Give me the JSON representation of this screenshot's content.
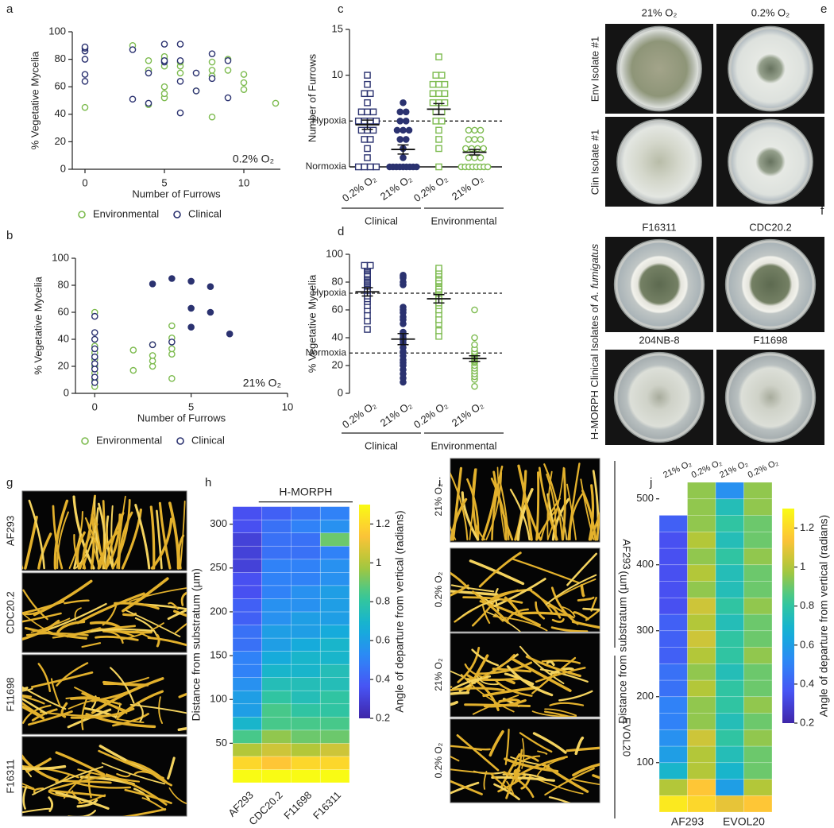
{
  "chart_data": [
    {
      "type": "scatter",
      "label": "a",
      "xlabel": "Number of Furrows",
      "ylabel": "% Vegetative Mycelia",
      "annotation": "0.2% O₂",
      "xlim": [
        -0.8,
        12.3
      ],
      "ylim": [
        0,
        100
      ],
      "xticks": [
        0,
        5,
        10
      ],
      "yticks": [
        0,
        20,
        40,
        60,
        80,
        100
      ],
      "series": [
        {
          "name": "Environmental",
          "color": "#7dbb4f",
          "x": [
            0,
            3,
            4,
            4,
            4,
            5,
            5,
            5,
            5,
            5,
            5,
            6,
            6,
            6,
            7,
            8,
            8,
            8,
            8,
            9,
            9,
            10,
            10,
            10,
            12
          ],
          "values": [
            45,
            90,
            47,
            79,
            72,
            52,
            55,
            60,
            75,
            80,
            82,
            70,
            75,
            78,
            57,
            38,
            68,
            72,
            78,
            72,
            80,
            58,
            63,
            69,
            48
          ]
        },
        {
          "name": "Clinical",
          "color": "#2b3270",
          "x": [
            0,
            0,
            0,
            0,
            0,
            0,
            3,
            3,
            4,
            4,
            5,
            5,
            5,
            6,
            6,
            6,
            6,
            7,
            7,
            8,
            8,
            9,
            9
          ],
          "values": [
            64,
            69,
            80,
            86,
            88,
            89,
            51,
            87,
            48,
            70,
            78,
            79,
            91,
            41,
            64,
            79,
            91,
            57,
            70,
            66,
            84,
            52,
            79
          ]
        }
      ]
    },
    {
      "type": "scatter",
      "label": "b",
      "xlabel": "Number of Furrows",
      "ylabel": "% Vegetative Mycelia",
      "annotation": "21% O₂",
      "xlim": [
        -1,
        10
      ],
      "ylim": [
        0,
        100
      ],
      "xticks": [
        0,
        5,
        10
      ],
      "yticks": [
        0,
        20,
        40,
        60,
        80,
        100
      ],
      "series": [
        {
          "name": "Environmental",
          "color": "#7dbb4f",
          "x": [
            0,
            0,
            0,
            0,
            0,
            0,
            0,
            0,
            2,
            2,
            3,
            3,
            3,
            3,
            4,
            4,
            4,
            4,
            4
          ],
          "values": [
            5,
            10,
            15,
            20,
            25,
            30,
            35,
            60,
            17,
            32,
            20,
            24,
            28,
            36,
            11,
            29,
            33,
            41,
            50
          ]
        },
        {
          "name": "Clinical",
          "color": "#2b3270",
          "x": [
            0,
            0,
            0,
            0,
            0,
            0,
            0,
            0,
            0,
            3,
            4,
            3,
            4,
            5,
            5,
            5,
            6,
            6,
            7
          ],
          "values": [
            8,
            12,
            18,
            22,
            27,
            33,
            40,
            45,
            57,
            36,
            38,
            81,
            85,
            49,
            63,
            83,
            60,
            79,
            44
          ],
          "filled": [
            false,
            false,
            false,
            false,
            false,
            false,
            false,
            false,
            false,
            false,
            false,
            true,
            true,
            true,
            true,
            true,
            true,
            true,
            true
          ]
        }
      ]
    },
    {
      "type": "dotplot",
      "label": "c",
      "ylabel": "Number of Furrows",
      "ylim": [
        0,
        15
      ],
      "yticks": [
        10,
        15
      ],
      "reference_lines": [
        {
          "value": 5,
          "label": "Hypoxia",
          "style": "dashed"
        },
        {
          "value": 0,
          "label": "Normoxia",
          "style": "solid"
        }
      ],
      "categories": [
        "0.2% O₂",
        "21% O₂",
        "0.2% O₂",
        "21% O₂"
      ],
      "groups": [
        "Clinical",
        "Environmental"
      ],
      "colors": [
        "#2b3270",
        "#2b3270",
        "#7dbb4f",
        "#7dbb4f"
      ],
      "markers": [
        "square-open",
        "circle-filled",
        "square-open",
        "circle-open"
      ],
      "points": [
        [
          0,
          0,
          0,
          0,
          1,
          2,
          3,
          3,
          4,
          4,
          4,
          5,
          5,
          5,
          5,
          6,
          6,
          6,
          7,
          8,
          8,
          9,
          10
        ],
        [
          0,
          0,
          0,
          0,
          0,
          0,
          0,
          0,
          0,
          1,
          2,
          3,
          3,
          4,
          4,
          4,
          5,
          5,
          6,
          6,
          7
        ],
        [
          0,
          2,
          3,
          4,
          5,
          5,
          6,
          6,
          7,
          7,
          7,
          8,
          8,
          8,
          9,
          9,
          9,
          10,
          10,
          12
        ],
        [
          0,
          0,
          0,
          0,
          0,
          0,
          0,
          0,
          1,
          1,
          1,
          2,
          2,
          2,
          2,
          3,
          3,
          3,
          4,
          4,
          4
        ]
      ],
      "means": [
        4.6,
        1.9,
        6.3,
        1.6
      ],
      "sems": [
        0.5,
        0.5,
        0.6,
        0.3
      ]
    },
    {
      "type": "dotplot",
      "label": "d",
      "ylabel": "% Vegetative Mycelia",
      "ylim": [
        0,
        100
      ],
      "yticks": [
        0,
        20,
        40,
        60,
        80,
        100
      ],
      "reference_lines": [
        {
          "value": 72,
          "label": "Hypoxia",
          "style": "dashed"
        },
        {
          "value": 29,
          "label": "Normoxia",
          "style": "dashed"
        }
      ],
      "categories": [
        "0.2% O₂",
        "21% O₂",
        "0.2% O₂",
        "21% O₂"
      ],
      "groups": [
        "Clinical",
        "Environmental"
      ],
      "colors": [
        "#2b3270",
        "#2b3270",
        "#7dbb4f",
        "#7dbb4f"
      ],
      "markers": [
        "square-open",
        "circle-filled",
        "square-open",
        "circle-open"
      ],
      "points": [
        [
          46,
          52,
          56,
          60,
          63,
          66,
          68,
          70,
          72,
          74,
          75,
          77,
          78,
          79,
          80,
          81,
          82,
          83,
          84,
          85,
          86,
          88,
          89,
          90,
          91,
          92,
          92
        ],
        [
          8,
          11,
          14,
          17,
          20,
          22,
          24,
          27,
          30,
          33,
          36,
          38,
          40,
          42,
          44,
          50,
          53,
          55,
          58,
          60,
          62,
          78,
          80,
          83,
          84,
          85
        ],
        [
          41,
          45,
          50,
          53,
          57,
          60,
          63,
          65,
          67,
          70,
          72,
          74,
          75,
          77,
          79,
          80,
          81,
          83,
          85,
          86,
          88,
          90
        ],
        [
          5,
          10,
          12,
          14,
          16,
          18,
          20,
          22,
          23,
          24,
          25,
          26,
          27,
          28,
          29,
          30,
          32,
          35,
          40,
          60
        ]
      ],
      "means": [
        73,
        39,
        68,
        25
      ],
      "sems": [
        3,
        4,
        3,
        2
      ]
    },
    {
      "type": "heatmap",
      "label": "h",
      "ylabel": "Distance from substratum (µm)",
      "columns": [
        "AF293",
        "CDC20.2",
        "F11698",
        "F16311"
      ],
      "column_group": "H-MORPH",
      "y_edges": [
        5,
        20,
        35,
        50,
        65,
        80,
        95,
        110,
        125,
        140,
        155,
        170,
        185,
        200,
        215,
        230,
        245,
        260,
        275,
        290,
        305,
        320
      ],
      "ylim": [
        5,
        320
      ],
      "yticks": [
        50,
        100,
        150,
        200,
        250,
        300
      ],
      "colormap": "parula",
      "values": [
        [
          1.3,
          1.2,
          1.0,
          0.85,
          0.7,
          0.6,
          0.6,
          0.55,
          0.5,
          0.5,
          0.45,
          0.45,
          0.4,
          0.4,
          0.35,
          0.35,
          0.3,
          0.3,
          0.3,
          0.35,
          0.35
        ],
        [
          1.3,
          1.15,
          1.05,
          0.95,
          0.85,
          0.85,
          0.8,
          0.75,
          0.7,
          0.65,
          0.6,
          0.6,
          0.55,
          0.55,
          0.5,
          0.5,
          0.5,
          0.45,
          0.45,
          0.45,
          0.4
        ],
        [
          1.3,
          1.2,
          1.0,
          0.9,
          0.85,
          0.8,
          0.75,
          0.75,
          0.7,
          0.7,
          0.65,
          0.6,
          0.6,
          0.55,
          0.55,
          0.5,
          0.5,
          0.45,
          0.45,
          0.5,
          0.45
        ],
        [
          1.3,
          1.2,
          1.05,
          0.9,
          0.85,
          0.8,
          0.8,
          0.75,
          0.75,
          0.7,
          0.7,
          0.65,
          0.6,
          0.6,
          0.6,
          0.55,
          0.55,
          0.5,
          0.9,
          0.55,
          0.5
        ]
      ],
      "colorbar": {
        "label": "Angle of departure from vertical (radians)",
        "lim": [
          0.2,
          1.3
        ],
        "ticks": [
          0.2,
          0.4,
          0.6,
          0.8,
          1,
          1.2
        ]
      }
    },
    {
      "type": "heatmap",
      "label": "j",
      "ylabel": "Distance from substratum (µm)",
      "columns": [
        "21% O₂",
        "0.2% O₂",
        "21% O₂",
        "0.2% O₂"
      ],
      "groups": [
        "AF293",
        "EVOL20"
      ],
      "y_edges": [
        25,
        50,
        75,
        100,
        125,
        150,
        175,
        200,
        225,
        250,
        275,
        300,
        325,
        350,
        375,
        400,
        425,
        450,
        475,
        500,
        525
      ],
      "ylim": [
        25,
        525
      ],
      "yticks": [
        100,
        200,
        300,
        400,
        500
      ],
      "colormap": "parula",
      "values": [
        [
          1.25,
          1.0,
          0.7,
          0.6,
          0.55,
          0.5,
          0.5,
          0.45,
          0.45,
          0.4,
          0.4,
          0.4,
          0.35,
          0.35,
          0.35,
          0.35,
          0.35,
          0.4,
          null,
          null
        ],
        [
          1.2,
          1.15,
          1.0,
          1.0,
          1.05,
          0.95,
          0.95,
          1.0,
          0.95,
          1.0,
          1.05,
          1.0,
          1.05,
          0.95,
          1.0,
          0.95,
          1.0,
          0.95,
          0.95,
          0.95
        ],
        [
          1.1,
          0.6,
          0.7,
          0.75,
          0.8,
          0.75,
          0.8,
          0.8,
          0.75,
          0.8,
          0.8,
          0.75,
          0.8,
          0.75,
          0.75,
          0.8,
          0.75,
          0.8,
          0.75,
          0.55
        ],
        [
          1.15,
          1.0,
          0.9,
          0.9,
          0.95,
          0.9,
          0.95,
          0.9,
          0.9,
          0.95,
          0.9,
          0.9,
          0.95,
          0.9,
          0.9,
          0.95,
          0.9,
          0.9,
          0.95,
          0.95
        ]
      ],
      "colorbar": {
        "label": "Angle of departure from vertical (radians)",
        "lim": [
          0.2,
          1.3
        ],
        "ticks": [
          0.2,
          0.4,
          0.6,
          0.8,
          1,
          1.2
        ]
      }
    }
  ],
  "photos": [
    {
      "label": "e",
      "columns": [
        "21% O₂",
        "0.2% O₂"
      ],
      "rows": [
        "Env Isolate #1",
        "Clin Isolate #1"
      ]
    },
    {
      "label": "f",
      "panels": [
        "F16311",
        "CDC20.2",
        "204NB-8",
        "F11698"
      ],
      "side_title": [
        "H-MORPH Clinical Isolates of ",
        "A. fumigatus"
      ]
    },
    {
      "label": "g",
      "panels": [
        "AF293",
        "CDC20.2",
        "F11698",
        "F16311"
      ]
    },
    {
      "label": "i",
      "panels": [
        "21% O₂",
        "0.2% O₂",
        "21% O₂",
        "0.2% O₂"
      ],
      "groups": [
        "AF293",
        "EVOL20"
      ]
    }
  ]
}
